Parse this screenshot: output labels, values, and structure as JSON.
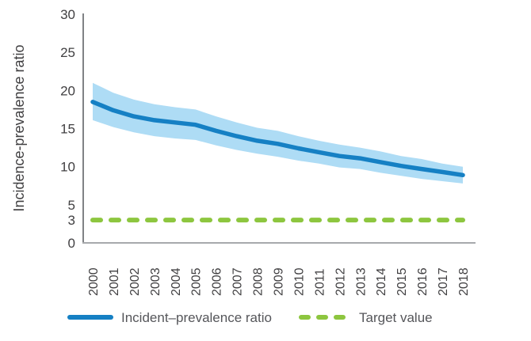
{
  "chart_data": {
    "type": "line",
    "title": "",
    "xlabel": "",
    "ylabel": "Incidence-prevalence ratio",
    "categories": [
      "2000",
      "2001",
      "2002",
      "2003",
      "2004",
      "2005",
      "2006",
      "2007",
      "2008",
      "2009",
      "2010",
      "2011",
      "2012",
      "2013",
      "2014",
      "2015",
      "2016",
      "2017",
      "2018"
    ],
    "yticks": [
      0,
      3,
      5,
      10,
      15,
      20,
      25,
      30
    ],
    "ylim": [
      0,
      30
    ],
    "grid": false,
    "legend_position": "bottom",
    "series": [
      {
        "name": "Incident–prevalence ratio",
        "style": "solid",
        "color": "#1580C4",
        "values": [
          18.5,
          17.4,
          16.6,
          16.1,
          15.8,
          15.5,
          14.7,
          14.0,
          13.4,
          13.0,
          12.4,
          11.9,
          11.4,
          11.1,
          10.6,
          10.1,
          9.7,
          9.3,
          8.9
        ],
        "band": {
          "color": "#AEDCF5",
          "upper": [
            21.0,
            19.7,
            18.8,
            18.2,
            17.8,
            17.5,
            16.6,
            15.8,
            15.1,
            14.7,
            14.0,
            13.4,
            12.9,
            12.5,
            12.0,
            11.4,
            11.0,
            10.4,
            10.0
          ],
          "lower": [
            16.1,
            15.2,
            14.5,
            14.0,
            13.7,
            13.5,
            12.8,
            12.2,
            11.7,
            11.3,
            10.8,
            10.4,
            9.9,
            9.7,
            9.2,
            8.8,
            8.4,
            8.1,
            7.8
          ]
        }
      },
      {
        "name": "Target value",
        "style": "dashed",
        "color": "#8DC63F",
        "constant": 3
      }
    ]
  },
  "legend": {
    "items": [
      {
        "label": "Incident–prevalence ratio",
        "swatch": "solid-line",
        "color": "#1580C4"
      },
      {
        "label": "Target value",
        "swatch": "dashed-line",
        "color": "#8DC63F"
      }
    ]
  },
  "colors": {
    "line": "#1580C4",
    "band": "#AEDCF5",
    "target": "#8DC63F",
    "axis_left": "#808285",
    "axis_bottom": "#A7A9AC",
    "tick_text": "#414042",
    "legend_text": "#55565A"
  }
}
